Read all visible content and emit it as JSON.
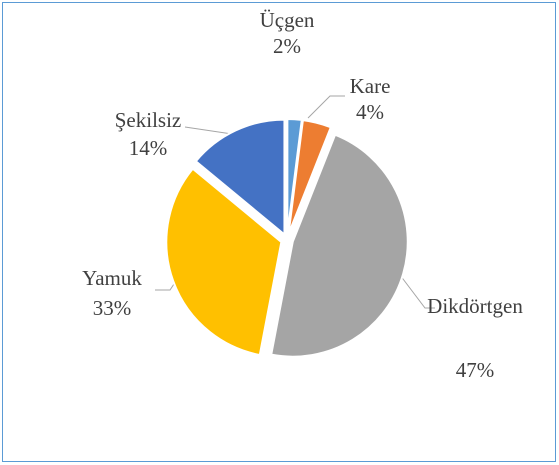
{
  "chart_data": {
    "type": "pie",
    "categories": [
      "Üçgen",
      "Kare",
      "Dikdörtgen",
      "Yamuk",
      "Şekilsiz"
    ],
    "values": [
      2,
      4,
      47,
      33,
      14
    ],
    "value_labels": [
      "2%",
      "4%",
      "47%",
      "33%",
      "14%"
    ],
    "colors": [
      "#5b9bd5",
      "#ed7d31",
      "#a5a5a5",
      "#ffc000",
      "#4472c4"
    ]
  }
}
